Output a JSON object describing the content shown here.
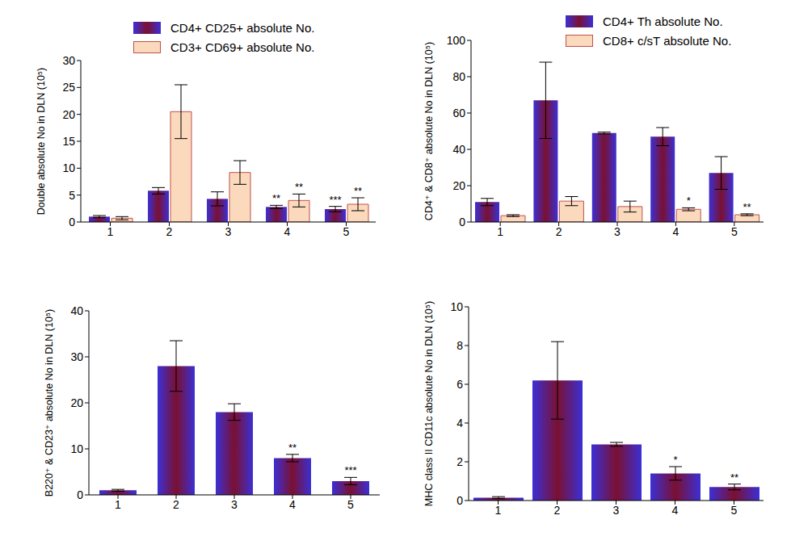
{
  "chart_data": [
    {
      "type": "bar",
      "y_label": "Double absolute No in DLN (10⁵)",
      "categories": [
        "1",
        "2",
        "3",
        "4",
        "5"
      ],
      "ylim": [
        0,
        30
      ],
      "yticks": [
        0,
        5,
        10,
        15,
        20,
        25,
        30
      ],
      "grid": false,
      "legend": "top",
      "series": [
        {
          "name": "CD4+ CD25+ absolute No.",
          "color": "#3b2fd6",
          "values": [
            1.0,
            5.8,
            4.3,
            2.8,
            2.4
          ],
          "errors": [
            0.2,
            0.6,
            1.3,
            0.3,
            0.5
          ],
          "annotations": [
            null,
            null,
            null,
            "**",
            "***"
          ]
        },
        {
          "name": "CD3+ CD69+ absolute No.",
          "color": "#fbd9bd",
          "values": [
            0.7,
            20.5,
            9.2,
            4.0,
            3.3
          ],
          "errors": [
            0.3,
            5.0,
            2.2,
            1.2,
            1.2
          ],
          "annotations": [
            null,
            null,
            null,
            "**",
            "**"
          ]
        }
      ]
    },
    {
      "type": "bar",
      "y_label": "CD4⁺ & CD8⁺ absolute No in DLN (10⁵)",
      "categories": [
        "1",
        "2",
        "3",
        "4",
        "5"
      ],
      "ylim": [
        0,
        100
      ],
      "yticks": [
        0,
        20,
        40,
        60,
        80,
        100
      ],
      "grid": false,
      "legend": "top right",
      "series": [
        {
          "name": "CD4+ Th absolute No.",
          "color": "#3b2fd6",
          "values": [
            11,
            67,
            49,
            47,
            27
          ],
          "errors": [
            2,
            21,
            0.5,
            5,
            9
          ],
          "annotations": [
            null,
            null,
            null,
            null,
            null
          ]
        },
        {
          "name": "CD8+ c/sT absolute No.",
          "color": "#fbd9bd",
          "values": [
            3.5,
            11.5,
            8.5,
            7,
            4
          ],
          "errors": [
            0.5,
            2.5,
            3,
            0.8,
            0.5
          ],
          "annotations": [
            null,
            null,
            null,
            "*",
            "**"
          ]
        }
      ]
    },
    {
      "type": "bar",
      "y_label": "B220⁺ & CD23⁺ absolute No in DLN (10⁵)",
      "categories": [
        "1",
        "2",
        "3",
        "4",
        "5"
      ],
      "ylim": [
        0,
        40
      ],
      "yticks": [
        0,
        10,
        20,
        30,
        40
      ],
      "grid": false,
      "series": [
        {
          "color": "#3b2fd6",
          "values": [
            1.0,
            28,
            18,
            8,
            3
          ],
          "errors": [
            0.2,
            5.5,
            1.8,
            0.8,
            0.8
          ],
          "annotations": [
            null,
            null,
            null,
            "**",
            "***"
          ]
        }
      ]
    },
    {
      "type": "bar",
      "y_label": "MHC class II CD11c absolute No in DLN (10⁵)",
      "categories": [
        "1",
        "2",
        "3",
        "4",
        "5"
      ],
      "ylim": [
        0,
        10
      ],
      "yticks": [
        0,
        2,
        4,
        6,
        8,
        10
      ],
      "grid": false,
      "series": [
        {
          "color": "#3b2fd6",
          "values": [
            0.15,
            6.2,
            2.9,
            1.4,
            0.7
          ],
          "errors": [
            0.05,
            2.0,
            0.1,
            0.35,
            0.15
          ],
          "annotations": [
            null,
            null,
            null,
            "*",
            "**"
          ]
        }
      ]
    }
  ]
}
